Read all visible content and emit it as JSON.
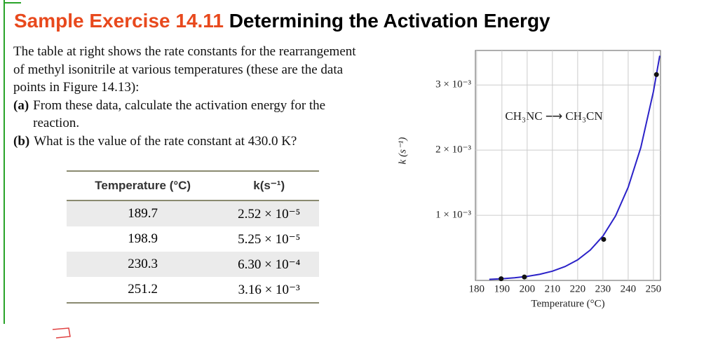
{
  "header": {
    "exercise": "Sample Exercise 14.11",
    "title": "Determining the Activation Energy"
  },
  "body": {
    "intro": "The table at right shows the rate constants for the rearrangement of methyl isonitrile at various temperatures (these are the data points in Figure 14.13):",
    "items": [
      {
        "label": "(a)",
        "text": "From these data, calculate the activation energy for the reaction."
      },
      {
        "label": "(b)",
        "text": "What is the value of the rate constant at 430.0 K?"
      }
    ]
  },
  "table": {
    "columns": [
      "Temperature (°C)",
      "k(s⁻¹)"
    ],
    "rows": [
      [
        "189.7",
        "2.52 × 10⁻⁵"
      ],
      [
        "198.9",
        "5.25 × 10⁻⁵"
      ],
      [
        "230.3",
        "6.30 × 10⁻⁴"
      ],
      [
        "251.2",
        "3.16 × 10⁻³"
      ]
    ]
  },
  "chart_data": {
    "type": "line",
    "annotation": "CH₃NC ⟶ CH₃CN",
    "x_label": "Temperature (°C)",
    "y_label": "k (s⁻¹)",
    "xlim": [
      179.5,
      252.8
    ],
    "ylim": [
      0,
      0.00353
    ],
    "xticks": [
      180,
      190,
      200,
      210,
      220,
      230,
      240,
      250
    ],
    "yticks": [
      {
        "value": 0.001,
        "label": "1 × 10⁻³"
      },
      {
        "value": 0.002,
        "label": "2 × 10⁻³"
      },
      {
        "value": 0.003,
        "label": "3 × 10⁻³"
      }
    ],
    "grid": true,
    "series": [
      {
        "color": "#2b22c8",
        "x": [
          185,
          190,
          195,
          200,
          205,
          210,
          215,
          220,
          225,
          230,
          235,
          240,
          245,
          250,
          252.5
        ],
        "values": [
          1.65e-05,
          2.59e-05,
          4.01e-05,
          6.17e-05,
          9.4e-05,
          0.000142,
          0.000213,
          0.000316,
          0.000466,
          0.000681,
          0.00099,
          0.00143,
          0.00204,
          0.0029,
          0.00345
        ]
      },
      {
        "color": "#111111",
        "markers": true,
        "x": [
          189.7,
          198.9,
          230.3,
          251.2
        ],
        "values": [
          2.52e-05,
          5.25e-05,
          0.00063,
          0.00316
        ]
      }
    ]
  }
}
